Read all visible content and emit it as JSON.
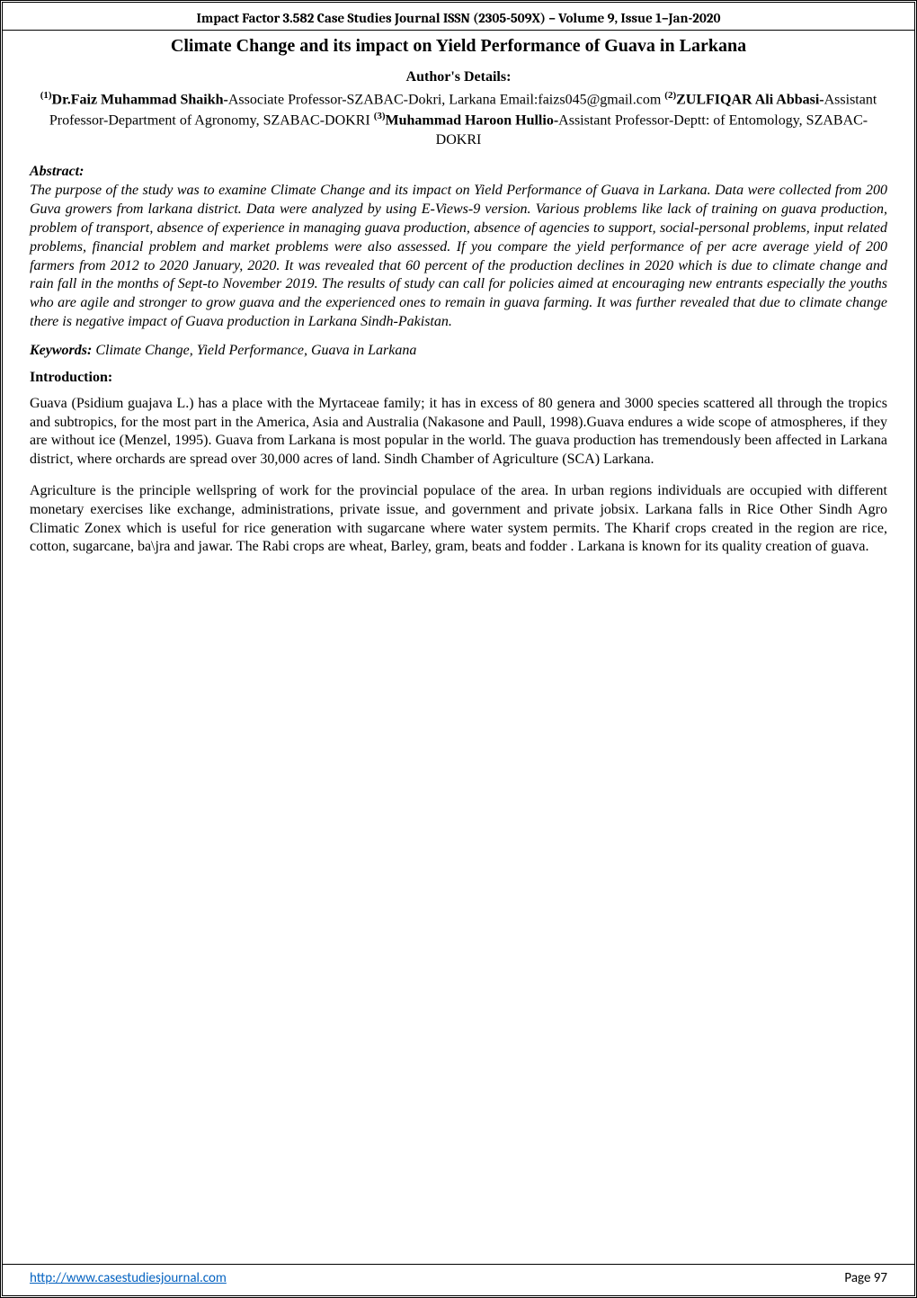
{
  "header": {
    "text": "Impact Factor 3.582   Case Studies Journal ISSN (2305-509X) – Volume 9, Issue 1–Jan-2020"
  },
  "title": "Climate Change and its impact on Yield Performance of Guava in Larkana",
  "author_details_label": "Author's Details:",
  "authors": {
    "sup1": "(1)",
    "name1": "Dr.Faiz Muhammad Shaikh-",
    "aff1": "Associate Professor-SZABAC-Dokri, Larkana Email:faizs045@gmail.com ",
    "sup2": "(2)",
    "name2": "ZULFIQAR Ali Abbasi-",
    "aff2": "Assistant Professor-Department of Agronomy, SZABAC-DOKRI ",
    "sup3": "(3)",
    "name3": "Muhammad Haroon Hullio-",
    "aff3": "Assistant Professor-Deptt: of Entomology, SZABAC-DOKRI"
  },
  "sections": {
    "abstract_heading": "Abstract:",
    "abstract_body": "The purpose of the study was to examine Climate Change and its impact on Yield Performance of Guava in Larkana. Data were collected from 200 Guva growers from larkana district.  Data were analyzed by using E-Views-9 version. Various problems like lack of training on guava production, problem of transport, absence of experience in managing guava production, absence of agencies to support, social-personal problems, input related problems, financial problem and market problems were also assessed. If you compare the yield performance of per acre average yield of 200 farmers from 2012 to 2020 January, 2020. It was revealed that 60 percent of the production declines in 2020 which is due to climate change and rain fall in the months of Sept-to November 2019. The results of study can call for policies aimed at encouraging new entrants especially the youths who are agile and stronger to grow guava and the experienced ones to remain in guava farming. It was further revealed that due to climate change there is negative impact of Guava production in Larkana Sindh-Pakistan.",
    "keywords_label": "Keywords:",
    "keywords_body": " Climate Change, Yield Performance, Guava in Larkana",
    "intro_heading": "Introduction:",
    "intro_p1": "Guava (Psidium guajava L.) has a place with the Myrtaceae family; it has in excess of 80 genera and 3000 species scattered all through the tropics and subtropics, for the most part in the America, Asia and Australia (Nakasone and Paull, 1998).Guava endures a wide scope of atmospheres, if they are without ice (Menzel, 1995). Guava from Larkana is most popular in the world. The guava production has tremendously been affected in Larkana district, where orchards are spread over 30,000 acres of land. Sindh Chamber of Agriculture (SCA) Larkana.",
    "intro_p2": "Agriculture is the principle wellspring of work for the provincial populace of the area. In urban regions individuals are occupied with different monetary exercises like exchange, administrations, private issue, and government and private jobsix. Larkana falls in Rice Other Sindh Agro Climatic Zonex which is useful for rice generation with sugarcane where water system permits. The Kharif crops created in the region are rice, cotton, sugarcane, ba\\jra and jawar. The Rabi crops are wheat, Barley, gram, beats and fodder . Larkana is known for its quality creation of guava."
  },
  "footer": {
    "url": "http://www.casestudiesjournal.com",
    "page_label": "Page 97"
  }
}
